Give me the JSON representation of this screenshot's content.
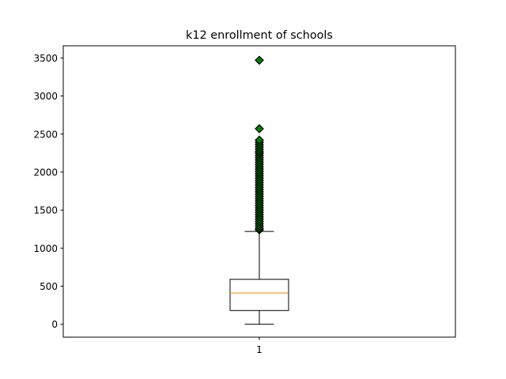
{
  "chart_data": {
    "type": "box",
    "title": "k12 enrollment of schools",
    "xlabel": "",
    "ylabel": "",
    "categories": [
      "1"
    ],
    "ylim": [
      -170,
      3660
    ],
    "yticks": [
      0,
      500,
      1000,
      1500,
      2000,
      2500,
      3000,
      3500
    ],
    "ytick_labels": [
      "0",
      "500",
      "1000",
      "1500",
      "2000",
      "2500",
      "3000",
      "3500"
    ],
    "grid": false,
    "box": {
      "category": "1",
      "whisker_low": 0,
      "q1": 180,
      "median": 410,
      "q3": 590,
      "whisker_high": 1220
    },
    "outliers": [
      1240,
      1260,
      1290,
      1320,
      1350,
      1380,
      1410,
      1440,
      1470,
      1500,
      1530,
      1560,
      1590,
      1620,
      1650,
      1680,
      1710,
      1740,
      1770,
      1800,
      1830,
      1860,
      1890,
      1920,
      1950,
      1980,
      2010,
      2040,
      2070,
      2100,
      2130,
      2160,
      2190,
      2220,
      2250,
      2270,
      2300,
      2330,
      2360,
      2390,
      2420,
      2570,
      3470
    ],
    "colors": {
      "box": "#000000",
      "median": "#ff7f0e",
      "outlier_fill": "#008000",
      "outlier_edge": "#000000"
    }
  }
}
